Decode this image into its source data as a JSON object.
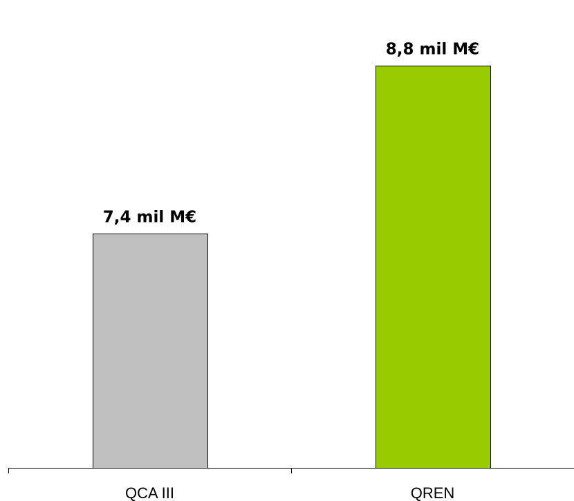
{
  "chart_data": {
    "type": "bar",
    "title": "",
    "xlabel": "",
    "ylabel": "",
    "categories": [
      "QCA III",
      "QREN"
    ],
    "values": [
      7.4,
      8.8
    ],
    "data_labels": [
      "7,4 mil M€",
      "8,8 mil M€"
    ],
    "colors": [
      "#c0c0c0",
      "#99cc00"
    ],
    "ylim": [
      5.45,
      9.05
    ],
    "grid": false,
    "legend": "none"
  }
}
